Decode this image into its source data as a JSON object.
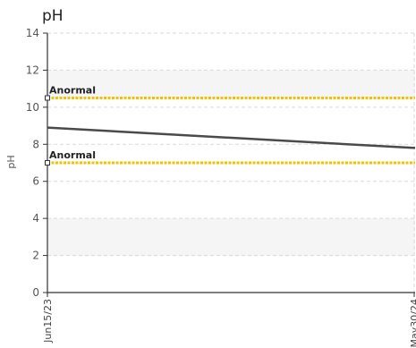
{
  "chart_data": {
    "type": "line",
    "title": "pH",
    "ylabel": "pH",
    "xlabel": "",
    "ylim": [
      0,
      14
    ],
    "yticks": [
      0,
      2,
      4,
      6,
      8,
      10,
      12,
      14
    ],
    "grid": true,
    "x": [
      "Jun15/23",
      "May30/24"
    ],
    "series": [
      {
        "values": [
          8.9,
          7.8
        ],
        "color": "#4a4a4a"
      }
    ],
    "reference_lines": [
      {
        "label": "Anormal",
        "y": 10.5,
        "color": "#f2c200"
      },
      {
        "label": "Anormal",
        "y": 7.0,
        "color": "#f2c200"
      }
    ],
    "shaded_bands": [
      {
        "from": 10.5,
        "to": 12,
        "color": "#f5f5f5"
      },
      {
        "from": 2,
        "to": 4,
        "color": "#f5f5f5"
      }
    ]
  }
}
